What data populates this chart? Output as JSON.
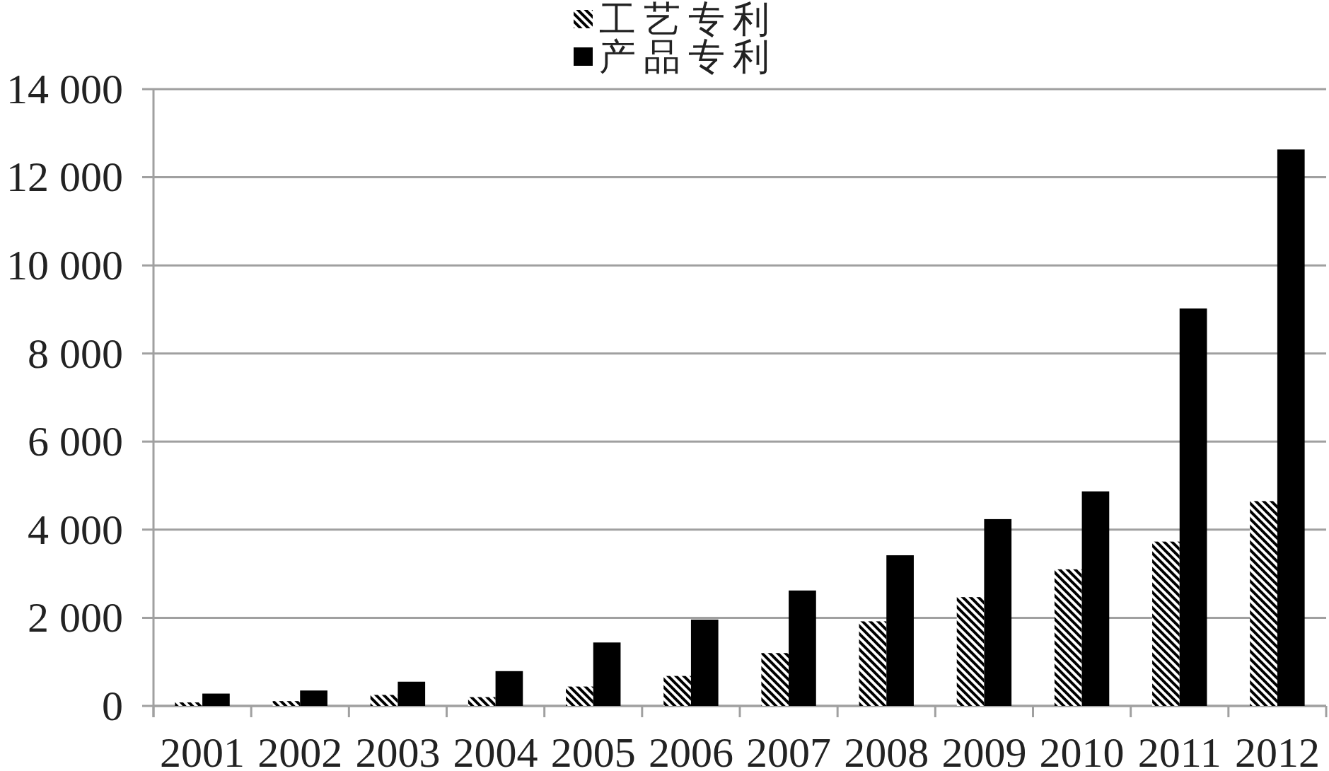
{
  "chart_data": {
    "type": "bar",
    "categories": [
      "2001",
      "2002",
      "2003",
      "2004",
      "2005",
      "2006",
      "2007",
      "2008",
      "2009",
      "2010",
      "2011",
      "2012"
    ],
    "series": [
      {
        "name": "工艺专利",
        "color": "#000000",
        "values": [
          80,
          110,
          250,
          200,
          440,
          680,
          1200,
          1920,
          2470,
          3100,
          3730,
          4650
        ]
      },
      {
        "name": "产品专利",
        "color": "#000000",
        "values": [
          280,
          350,
          550,
          790,
          1440,
          1960,
          2620,
          3420,
          4240,
          4870,
          9020,
          12630
        ]
      }
    ],
    "ylim": [
      0,
      14000
    ],
    "yticks": [
      {
        "value": 0,
        "label": "0"
      },
      {
        "value": 2000,
        "label": "2 000"
      },
      {
        "value": 4000,
        "label": "4 000"
      },
      {
        "value": 6000,
        "label": "6 000"
      },
      {
        "value": 8000,
        "label": "8 000"
      },
      {
        "value": 10000,
        "label": "10 000"
      },
      {
        "value": 12000,
        "label": "12 000"
      },
      {
        "value": 14000,
        "label": "14 000"
      }
    ],
    "grid": "y",
    "legend": "top"
  }
}
